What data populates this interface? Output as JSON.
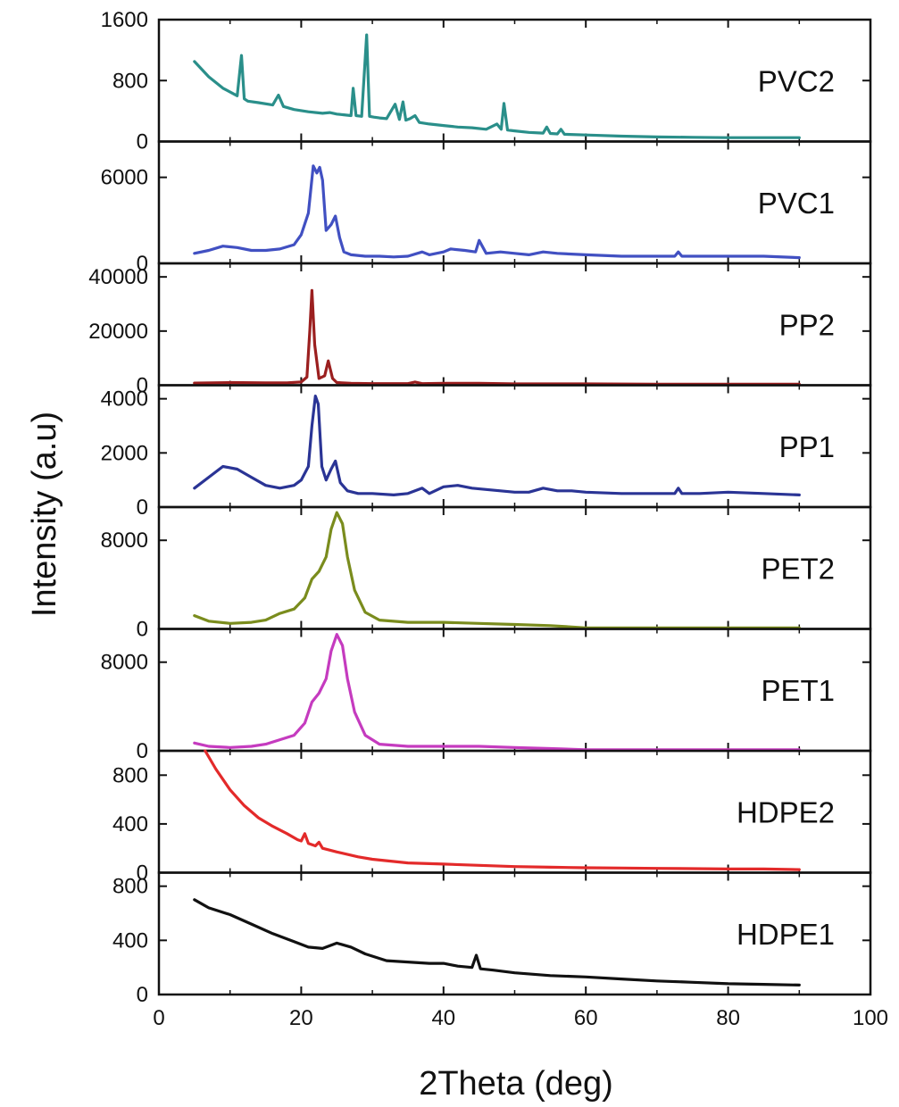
{
  "chart_data": {
    "type": "line",
    "xlabel": "2Theta (deg)",
    "ylabel": "Intensity (a.u)",
    "xlim": [
      0,
      100
    ],
    "xticks": [
      0,
      20,
      40,
      60,
      80,
      100
    ],
    "grid": false,
    "legend": "none",
    "panels": [
      {
        "name": "PVC2",
        "color": "#2a8f8a",
        "ylim": [
          0,
          1600
        ],
        "yticks": [
          0,
          800,
          1600
        ],
        "x": [
          5,
          7,
          9,
          11,
          11.6,
          12,
          12.5,
          14,
          16,
          16.8,
          17.5,
          19,
          21,
          23,
          24,
          25,
          26,
          27,
          27.3,
          27.7,
          28.5,
          29.2,
          29.6,
          30.2,
          31,
          32,
          33.2,
          33.8,
          34.3,
          34.7,
          35.3,
          36,
          36.6,
          38,
          40,
          42,
          44,
          46,
          47.5,
          48.1,
          48.5,
          49,
          50,
          52,
          54,
          54.5,
          55,
          56,
          56.5,
          57,
          60,
          65,
          70,
          75,
          80,
          85,
          90
        ],
        "y": [
          1050,
          850,
          700,
          600,
          1130,
          560,
          530,
          510,
          480,
          610,
          460,
          420,
          390,
          370,
          380,
          360,
          350,
          340,
          700,
          340,
          330,
          1400,
          330,
          320,
          310,
          300,
          490,
          290,
          520,
          280,
          300,
          340,
          250,
          230,
          210,
          190,
          180,
          160,
          230,
          160,
          500,
          150,
          140,
          120,
          110,
          190,
          105,
          100,
          160,
          95,
          85,
          70,
          60,
          55,
          50,
          50,
          50
        ]
      },
      {
        "name": "PVC1",
        "color": "#4150c2",
        "ylim": [
          0,
          8500
        ],
        "yticks": [
          0,
          6000
        ],
        "x": [
          5,
          7,
          9,
          11,
          13,
          15,
          17,
          19,
          20,
          21,
          21.7,
          22.2,
          22.6,
          23,
          23.5,
          24.2,
          24.8,
          25.4,
          26,
          27,
          29,
          31,
          33,
          35,
          37,
          38,
          40,
          41,
          43,
          44.5,
          45,
          46,
          48,
          50,
          52,
          54,
          56,
          60,
          65,
          70,
          72.5,
          73,
          73.5,
          76,
          80,
          85,
          90
        ],
        "y": [
          700,
          900,
          1200,
          1100,
          900,
          900,
          1000,
          1300,
          2000,
          3500,
          6800,
          6300,
          6700,
          5800,
          2300,
          2700,
          3300,
          1800,
          800,
          600,
          500,
          500,
          450,
          500,
          800,
          600,
          800,
          1000,
          900,
          800,
          1600,
          700,
          800,
          700,
          600,
          800,
          700,
          600,
          500,
          500,
          500,
          800,
          500,
          500,
          500,
          500,
          400
        ]
      },
      {
        "name": "PP2",
        "color": "#9b1f1f",
        "ylim": [
          0,
          45000
        ],
        "yticks": [
          0,
          20000,
          40000
        ],
        "x": [
          5,
          10,
          15,
          18,
          20,
          20.8,
          21.2,
          21.5,
          21.9,
          22.5,
          23.3,
          23.8,
          24.4,
          25,
          27,
          30,
          35,
          36,
          37,
          40,
          45,
          50,
          60,
          70,
          80,
          90
        ],
        "y": [
          800,
          1000,
          900,
          900,
          1200,
          3000,
          20000,
          35000,
          15000,
          2500,
          3500,
          9000,
          2500,
          1000,
          700,
          600,
          600,
          1200,
          600,
          700,
          700,
          500,
          500,
          400,
          400,
          400
        ]
      },
      {
        "name": "PP1",
        "color": "#2a3495",
        "ylim": [
          0,
          4500
        ],
        "yticks": [
          0,
          2000,
          4000
        ],
        "x": [
          5,
          7,
          9,
          11,
          13,
          15,
          17,
          19,
          20,
          21,
          21.5,
          22,
          22.4,
          22.9,
          23.5,
          24.2,
          24.8,
          25.5,
          26.5,
          28,
          30,
          33,
          35,
          37,
          38,
          40,
          42,
          44,
          46,
          48,
          50,
          52,
          54,
          56,
          58,
          60,
          65,
          70,
          72.5,
          73,
          73.5,
          76,
          80,
          85,
          90
        ],
        "y": [
          700,
          1100,
          1500,
          1400,
          1100,
          800,
          700,
          800,
          1000,
          1500,
          3000,
          4100,
          3800,
          1500,
          1000,
          1400,
          1700,
          900,
          600,
          500,
          500,
          450,
          500,
          700,
          500,
          750,
          800,
          700,
          650,
          600,
          550,
          550,
          700,
          600,
          600,
          550,
          500,
          500,
          500,
          700,
          500,
          500,
          550,
          500,
          450
        ]
      },
      {
        "name": "PET2",
        "color": "#7a8c1d",
        "ylim": [
          0,
          11000
        ],
        "yticks": [
          0,
          8000
        ],
        "x": [
          5,
          7,
          10,
          13,
          15,
          17,
          19,
          20.5,
          21.5,
          22.5,
          23.5,
          24.2,
          25,
          25.8,
          26.5,
          27.5,
          29,
          31,
          35,
          40,
          45,
          50,
          55,
          60,
          70,
          80,
          90
        ],
        "y": [
          1200,
          700,
          500,
          600,
          800,
          1400,
          1800,
          2800,
          4500,
          5200,
          6500,
          9000,
          10500,
          9500,
          6500,
          3500,
          1500,
          800,
          600,
          600,
          500,
          400,
          300,
          100,
          100,
          100,
          100
        ]
      },
      {
        "name": "PET1",
        "color": "#c53bbf",
        "ylim": [
          0,
          11000
        ],
        "yticks": [
          0,
          8000
        ],
        "x": [
          5,
          7,
          10,
          13,
          15,
          17,
          19,
          20.5,
          21.5,
          22.5,
          23.5,
          24.2,
          25,
          25.8,
          26.5,
          27.5,
          29,
          31,
          35,
          40,
          45,
          50,
          55,
          60,
          70,
          80,
          90
        ],
        "y": [
          700,
          400,
          300,
          400,
          600,
          1000,
          1400,
          2500,
          4400,
          5200,
          6500,
          9000,
          10500,
          9500,
          6500,
          3500,
          1400,
          600,
          400,
          400,
          400,
          300,
          200,
          100,
          100,
          100,
          100
        ]
      },
      {
        "name": "HDPE2",
        "color": "#e32a2a",
        "ylim": [
          0,
          1000
        ],
        "yticks": [
          0,
          400,
          800
        ],
        "x": [
          6.5,
          8,
          10,
          12,
          14,
          16,
          18,
          19.5,
          20,
          20.5,
          21,
          22,
          22.5,
          23,
          25,
          28,
          30,
          35,
          40,
          45,
          50,
          55,
          60,
          65,
          70,
          75,
          80,
          85,
          90
        ],
        "y": [
          1000,
          850,
          680,
          550,
          450,
          380,
          320,
          270,
          260,
          320,
          240,
          220,
          250,
          200,
          170,
          130,
          110,
          80,
          70,
          60,
          50,
          45,
          40,
          38,
          35,
          33,
          30,
          30,
          25
        ]
      },
      {
        "name": "HDPE1",
        "color": "#111111",
        "ylim": [
          0,
          900
        ],
        "yticks": [
          0,
          400,
          800
        ],
        "x": [
          5,
          7,
          10,
          13,
          16,
          19,
          21,
          23,
          25,
          27,
          29,
          32,
          35,
          38,
          40,
          42,
          44,
          44.6,
          45.2,
          47,
          50,
          55,
          60,
          65,
          70,
          75,
          80,
          85,
          90
        ],
        "y": [
          700,
          640,
          590,
          520,
          450,
          390,
          350,
          340,
          380,
          350,
          300,
          250,
          240,
          230,
          230,
          210,
          200,
          290,
          190,
          180,
          160,
          140,
          130,
          115,
          100,
          90,
          80,
          75,
          70
        ]
      }
    ]
  }
}
